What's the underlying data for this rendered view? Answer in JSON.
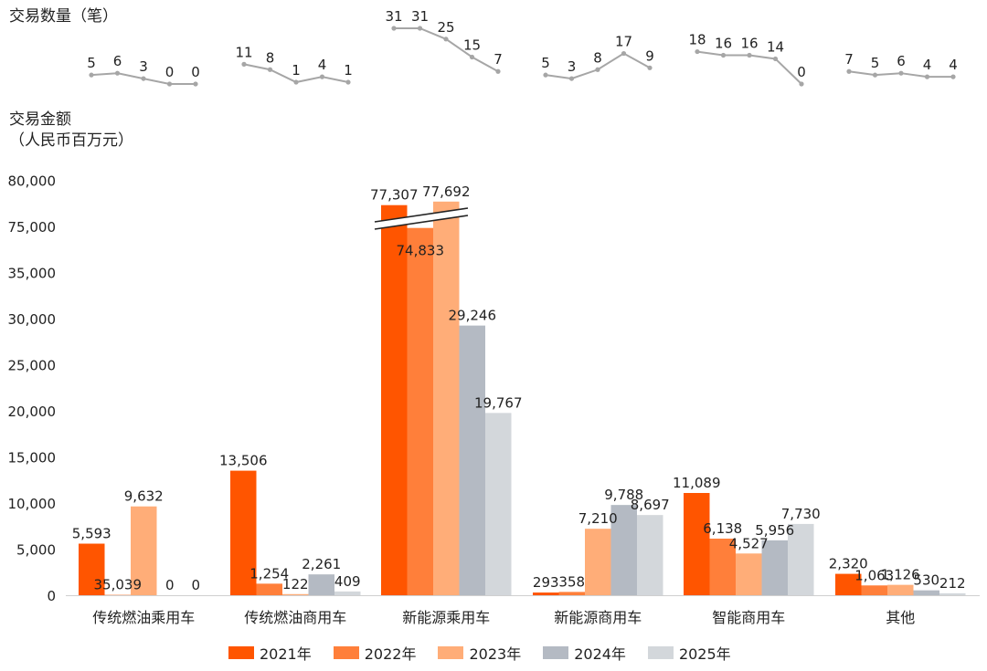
{
  "header": {
    "count_title": "交易数量（笔）",
    "amount_title_line1": "交易金额",
    "amount_title_line2": "（人民币百万元）"
  },
  "chart_data": {
    "type": "bar",
    "categories": [
      "传统燃油乘用车",
      "传统燃油商用车",
      "新能源乘用车",
      "新能源商用车",
      "智能商用车",
      "其他"
    ],
    "series": [
      {
        "name": "2021年",
        "color": "#ff5500",
        "values": [
          5593,
          13506,
          77307,
          293,
          11089,
          2320
        ]
      },
      {
        "name": "2022年",
        "color": "#ff7f3a",
        "values": [
          35039,
          1254,
          74833,
          358,
          6138,
          1063
        ]
      },
      {
        "name": "2023年",
        "color": "#ffad78",
        "values": [
          9632,
          122,
          77692,
          7210,
          4527,
          1126
        ]
      },
      {
        "name": "2024年",
        "color": "#b4bac3",
        "values": [
          0,
          2261,
          29246,
          9788,
          5956,
          530
        ]
      },
      {
        "name": "2025年",
        "color": "#d3d7db",
        "values": [
          0,
          409,
          19767,
          8697,
          7730,
          212
        ]
      }
    ],
    "value_labels": [
      [
        "5,593",
        "35,039",
        "9,632",
        "0",
        "0"
      ],
      [
        "13,506",
        "1,254",
        "122",
        "2,261",
        "409"
      ],
      [
        "77,307",
        "74,833",
        "77,692",
        "29,246",
        "19,767"
      ],
      [
        "293",
        "358",
        "7,210",
        "9,788",
        "8,697"
      ],
      [
        "11,089",
        "6,138",
        "4,527",
        "5,956",
        "7,730"
      ],
      [
        "2,320",
        "1,063",
        "1,126",
        "530",
        "212"
      ]
    ],
    "yticks": [
      "0",
      "5,000",
      "10,000",
      "15,000",
      "20,000",
      "25,000",
      "30,000",
      "35,000",
      "75,000",
      "80,000"
    ],
    "ytick_values": [
      0,
      5000,
      10000,
      15000,
      20000,
      25000,
      30000,
      35000,
      75000,
      80000
    ],
    "y_axis_break": [
      35000,
      75000
    ],
    "counts": [
      [
        5,
        6,
        3,
        0,
        0
      ],
      [
        11,
        8,
        1,
        4,
        1
      ],
      [
        31,
        31,
        25,
        15,
        7
      ],
      [
        5,
        3,
        8,
        17,
        9
      ],
      [
        18,
        16,
        16,
        14,
        0
      ],
      [
        7,
        5,
        6,
        4,
        4
      ]
    ],
    "count_line_color": "#a6a6a6",
    "grid": false,
    "legend_position": "bottom"
  }
}
